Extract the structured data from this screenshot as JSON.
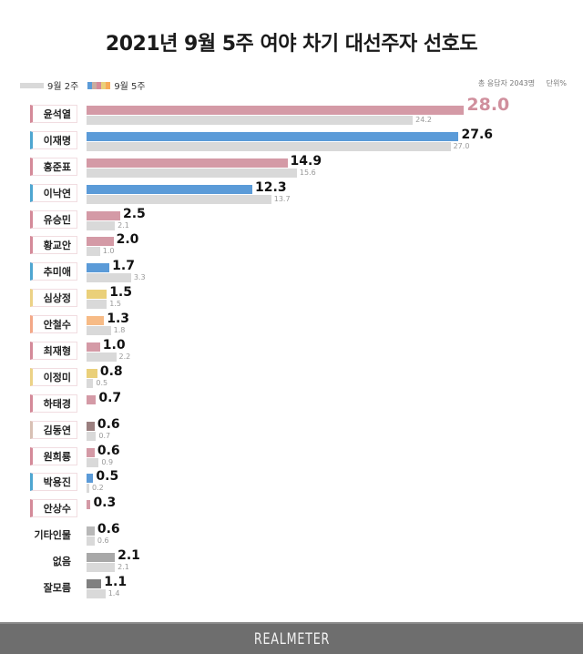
{
  "title": "2021년 9월 5주 여야 차기 대선주자 선호도",
  "legend": {
    "prev_label": "9월 2주",
    "now_label": "9월 5주",
    "now_swatch_colors": [
      "#5b9bd8",
      "#c9ada0",
      "#d48a99",
      "#ead07a",
      "#f7ab58"
    ]
  },
  "meta": {
    "respondents": "총 응답자 2043명",
    "unit": "단위%"
  },
  "footer": {
    "brand": "REALMETER"
  },
  "chart_data": {
    "type": "bar",
    "orientation": "horizontal",
    "title": "2021년 9월 5주 여야 차기 대선주자 선호도",
    "xlabel": "",
    "ylabel": "",
    "unit": "%",
    "grid": false,
    "legend_position": "top-left",
    "categories": [
      "윤석열",
      "이재명",
      "홍준표",
      "이낙연",
      "유승민",
      "황교안",
      "추미애",
      "심상정",
      "안철수",
      "최재형",
      "이정미",
      "하태경",
      "김동연",
      "원희룡",
      "박용진",
      "안상수",
      "기타인물",
      "없음",
      "잘모름"
    ],
    "series": [
      {
        "name": "9월 5주",
        "values": [
          28.0,
          27.6,
          14.9,
          12.3,
          2.5,
          2.0,
          1.7,
          1.5,
          1.3,
          1.0,
          0.8,
          0.7,
          0.6,
          0.6,
          0.5,
          0.3,
          0.6,
          2.1,
          1.1
        ]
      },
      {
        "name": "9월 2주",
        "values": [
          24.2,
          27.0,
          15.6,
          13.7,
          2.1,
          1.0,
          3.3,
          1.5,
          1.8,
          2.2,
          0.5,
          null,
          0.7,
          0.9,
          0.2,
          null,
          0.6,
          2.1,
          1.4
        ]
      }
    ],
    "colors": [
      "#d49aa6",
      "#5b9bd8",
      "#d49aa6",
      "#5b9bd8",
      "#d49aa6",
      "#d49aa6",
      "#5b9bd8",
      "#ead07a",
      "#f7bb86",
      "#d49aa6",
      "#ead07a",
      "#d49aa6",
      "#9a7f7f",
      "#d49aa6",
      "#5b9bd8",
      "#d49aa6",
      "#b8b8b8",
      "#a8a8a8",
      "#808080"
    ],
    "label_accent_colors": [
      "#d48a99",
      "#4fa6d1",
      "#d48a99",
      "#4fa6d1",
      "#d48a99",
      "#d48a99",
      "#4fa6d1",
      "#ecd286",
      "#f3a887",
      "#d48a99",
      "#ecd286",
      "#d48a99",
      "#d8c0b4",
      "#d48a99",
      "#4fa6d1",
      "#d48a99",
      null,
      null,
      null
    ]
  }
}
